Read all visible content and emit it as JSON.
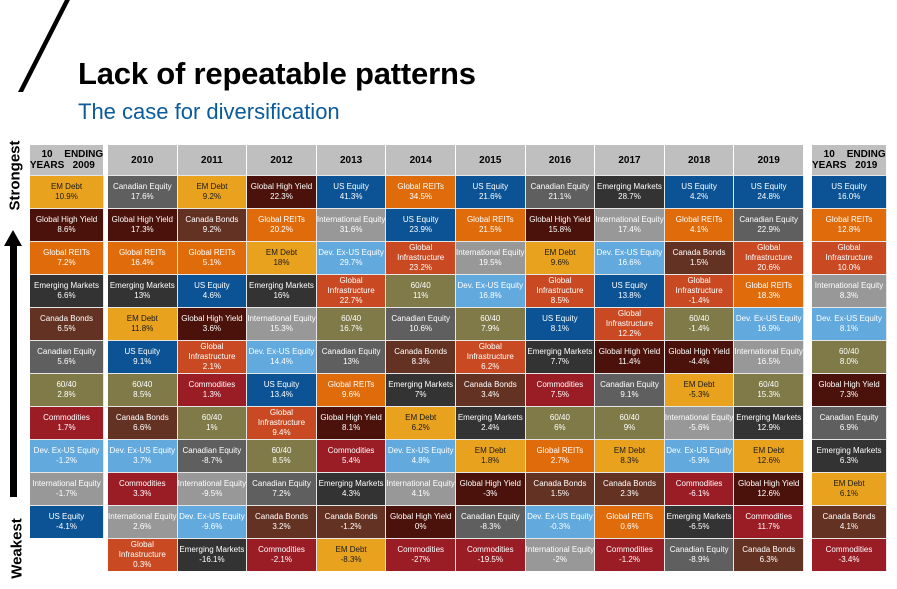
{
  "header": {
    "title": "Lack of repeatable patterns",
    "subtitle": "The case for diversification"
  },
  "axis": {
    "top_label": "Strongest",
    "bottom_label": "Weakest"
  },
  "asset_colors": {
    "EM Debt": "#e8a21e",
    "Global High Yield": "#4a120a",
    "Global REITs": "#e06b0b",
    "Emerging Markets": "#333333",
    "Canada Bonds": "#643222",
    "Canadian Equity": "#5f5f5f",
    "60/40": "#7f7a48",
    "Commodities": "#9a1c25",
    "Dev. Ex-US Equity": "#62a9de",
    "International Equity": "#989898",
    "US Equity": "#0b5394",
    "Global Infrastructure": "#c94a22"
  },
  "chart_data": {
    "type": "table",
    "title": "Lack of repeatable patterns",
    "subtitle": "The case for diversification",
    "ranking": "Strongest (top) to Weakest (bottom)",
    "columns": [
      {
        "header": [
          "10 YEARS",
          "ENDING 2009"
        ],
        "cells": [
          {
            "asset": "EM Debt",
            "value": "10.9%"
          },
          {
            "asset": "Global High Yield",
            "value": "8.6%"
          },
          {
            "asset": "Global REITs",
            "value": "7.2%"
          },
          {
            "asset": "Emerging Markets",
            "value": "6.6%"
          },
          {
            "asset": "Canada Bonds",
            "value": "6.5%"
          },
          {
            "asset": "Canadian Equity",
            "value": "5.6%"
          },
          {
            "asset": "60/40",
            "value": "2.8%"
          },
          {
            "asset": "Commodities",
            "value": "1.7%"
          },
          {
            "asset": "Dev. Ex-US Equity",
            "value": "-1.2%"
          },
          {
            "asset": "International Equity",
            "value": "-1.7%"
          },
          {
            "asset": "US Equity",
            "value": "-4.1%"
          }
        ]
      },
      {
        "header": [
          "2010"
        ],
        "cells": [
          {
            "asset": "Canadian Equity",
            "value": "17.6%"
          },
          {
            "asset": "Global High Yield",
            "value": "17.3%"
          },
          {
            "asset": "Global REITs",
            "value": "16.4%"
          },
          {
            "asset": "Emerging Markets",
            "value": "13%"
          },
          {
            "asset": "EM Debt",
            "value": "11.8%"
          },
          {
            "asset": "US Equity",
            "value": "9.1%"
          },
          {
            "asset": "60/40",
            "value": "8.5%"
          },
          {
            "asset": "Canada Bonds",
            "value": "6.6%"
          },
          {
            "asset": "Dev. Ex-US Equity",
            "value": "3.7%"
          },
          {
            "asset": "Commodities",
            "value": "3.3%"
          },
          {
            "asset": "International Equity",
            "value": "2.6%"
          },
          {
            "asset": "Global Infrastructure",
            "value": "0.3%"
          }
        ]
      },
      {
        "header": [
          "2011"
        ],
        "cells": [
          {
            "asset": "EM Debt",
            "value": "9.2%"
          },
          {
            "asset": "Canada Bonds",
            "value": "9.2%"
          },
          {
            "asset": "Global REITs",
            "value": "5.1%"
          },
          {
            "asset": "US Equity",
            "value": "4.6%"
          },
          {
            "asset": "Global High Yield",
            "value": "3.6%"
          },
          {
            "asset": "Global Infrastructure",
            "value": "2.1%"
          },
          {
            "asset": "Commodities",
            "value": "1.3%"
          },
          {
            "asset": "60/40",
            "value": "1%"
          },
          {
            "asset": "Canadian Equity",
            "value": "-8.7%"
          },
          {
            "asset": "International Equity",
            "value": "-9.5%"
          },
          {
            "asset": "Dev. Ex-US Equity",
            "value": "-9.6%"
          },
          {
            "asset": "Emerging Markets",
            "value": "-16.1%"
          }
        ]
      },
      {
        "header": [
          "2012"
        ],
        "cells": [
          {
            "asset": "Global High Yield",
            "value": "22.3%"
          },
          {
            "asset": "Global REITs",
            "value": "20.2%"
          },
          {
            "asset": "EM Debt",
            "value": "18%"
          },
          {
            "asset": "Emerging Markets",
            "value": "16%"
          },
          {
            "asset": "International Equity",
            "value": "15.3%"
          },
          {
            "asset": "Dev. Ex-US Equity",
            "value": "14.4%"
          },
          {
            "asset": "US Equity",
            "value": "13.4%"
          },
          {
            "asset": "Global Infrastructure",
            "value": "9.4%"
          },
          {
            "asset": "60/40",
            "value": "8.5%"
          },
          {
            "asset": "Canadian Equity",
            "value": "7.2%"
          },
          {
            "asset": "Canada Bonds",
            "value": "3.2%"
          },
          {
            "asset": "Commodities",
            "value": "-2.1%"
          }
        ]
      },
      {
        "header": [
          "2013"
        ],
        "cells": [
          {
            "asset": "US Equity",
            "value": "41.3%"
          },
          {
            "asset": "International Equity",
            "value": "31.6%"
          },
          {
            "asset": "Dev. Ex-US Equity",
            "value": "29.7%"
          },
          {
            "asset": "Global Infrastructure",
            "value": "22.7%"
          },
          {
            "asset": "60/40",
            "value": "16.7%"
          },
          {
            "asset": "Canadian Equity",
            "value": "13%"
          },
          {
            "asset": "Global REITs",
            "value": "9.6%"
          },
          {
            "asset": "Global High Yield",
            "value": "8.1%"
          },
          {
            "asset": "Commodities",
            "value": "5.4%"
          },
          {
            "asset": "Emerging Markets",
            "value": "4.3%"
          },
          {
            "asset": "Canada Bonds",
            "value": "-1.2%"
          },
          {
            "asset": "EM Debt",
            "value": "-8.3%"
          }
        ]
      },
      {
        "header": [
          "2014"
        ],
        "cells": [
          {
            "asset": "Global REITs",
            "value": "34.5%"
          },
          {
            "asset": "US Equity",
            "value": "23.9%"
          },
          {
            "asset": "Global Infrastructure",
            "value": "23.2%"
          },
          {
            "asset": "60/40",
            "value": "11%"
          },
          {
            "asset": "Canadian Equity",
            "value": "10.6%"
          },
          {
            "asset": "Canada Bonds",
            "value": "8.3%"
          },
          {
            "asset": "Emerging Markets",
            "value": "7%"
          },
          {
            "asset": "EM Debt",
            "value": "6.2%"
          },
          {
            "asset": "Dev. Ex-US Equity",
            "value": "4.8%"
          },
          {
            "asset": "International Equity",
            "value": "4.1%"
          },
          {
            "asset": "Global High Yield",
            "value": "0%"
          },
          {
            "asset": "Commodities",
            "value": "-27%"
          }
        ]
      },
      {
        "header": [
          "2015"
        ],
        "cells": [
          {
            "asset": "US Equity",
            "value": "21.6%"
          },
          {
            "asset": "Global REITs",
            "value": "21.5%"
          },
          {
            "asset": "International Equity",
            "value": "19.5%"
          },
          {
            "asset": "Dev. Ex-US Equity",
            "value": "16.8%"
          },
          {
            "asset": "60/40",
            "value": "7.9%"
          },
          {
            "asset": "Global Infrastructure",
            "value": "6.2%"
          },
          {
            "asset": "Canada Bonds",
            "value": "3.4%"
          },
          {
            "asset": "Emerging Markets",
            "value": "2.4%"
          },
          {
            "asset": "EM Debt",
            "value": "1.8%"
          },
          {
            "asset": "Global High Yield",
            "value": "-3%"
          },
          {
            "asset": "Canadian Equity",
            "value": "-8.3%"
          },
          {
            "asset": "Commodities",
            "value": "-19.5%"
          }
        ]
      },
      {
        "header": [
          "2016"
        ],
        "cells": [
          {
            "asset": "Canadian Equity",
            "value": "21.1%"
          },
          {
            "asset": "Global High Yield",
            "value": "15.8%"
          },
          {
            "asset": "EM Debt",
            "value": "9.6%"
          },
          {
            "asset": "Global Infrastructure",
            "value": "8.5%"
          },
          {
            "asset": "US Equity",
            "value": "8.1%"
          },
          {
            "asset": "Emerging Markets",
            "value": "7.7%"
          },
          {
            "asset": "Commodities",
            "value": "7.5%"
          },
          {
            "asset": "60/40",
            "value": "6%"
          },
          {
            "asset": "Global REITs",
            "value": "2.7%"
          },
          {
            "asset": "Canada Bonds",
            "value": "1.5%"
          },
          {
            "asset": "Dev. Ex-US Equity",
            "value": "-0.3%"
          },
          {
            "asset": "International Equity",
            "value": "-2%"
          }
        ]
      },
      {
        "header": [
          "2017"
        ],
        "cells": [
          {
            "asset": "Emerging Markets",
            "value": "28.7%"
          },
          {
            "asset": "International Equity",
            "value": "17.4%"
          },
          {
            "asset": "Dev. Ex-US Equity",
            "value": "16.6%"
          },
          {
            "asset": "US Equity",
            "value": "13.8%"
          },
          {
            "asset": "Global Infrastructure",
            "value": "12.2%"
          },
          {
            "asset": "Global High Yield",
            "value": "11.4%"
          },
          {
            "asset": "Canadian Equity",
            "value": "9.1%"
          },
          {
            "asset": "60/40",
            "value": "9%"
          },
          {
            "asset": "EM Debt",
            "value": "8.3%"
          },
          {
            "asset": "Canada Bonds",
            "value": "2.3%"
          },
          {
            "asset": "Global REITs",
            "value": "0.6%"
          },
          {
            "asset": "Commodities",
            "value": "-1.2%"
          }
        ]
      },
      {
        "header": [
          "2018"
        ],
        "cells": [
          {
            "asset": "US Equity",
            "value": "4.2%"
          },
          {
            "asset": "Global REITs",
            "value": "4.1%"
          },
          {
            "asset": "Canada Bonds",
            "value": "1.5%"
          },
          {
            "asset": "Global Infrastructure",
            "value": "-1.4%"
          },
          {
            "asset": "60/40",
            "value": "-1.4%"
          },
          {
            "asset": "Global High Yield",
            "value": "-4.4%"
          },
          {
            "asset": "EM Debt",
            "value": "-5.3%"
          },
          {
            "asset": "International Equity",
            "value": "-5.6%"
          },
          {
            "asset": "Dev. Ex-US Equity",
            "value": "-5.9%"
          },
          {
            "asset": "Commodities",
            "value": "-6.1%"
          },
          {
            "asset": "Emerging Markets",
            "value": "-6.5%"
          },
          {
            "asset": "Canadian Equity",
            "value": "-8.9%"
          }
        ]
      },
      {
        "header": [
          "2019"
        ],
        "cells": [
          {
            "asset": "US Equity",
            "value": "24.8%"
          },
          {
            "asset": "Canadian Equity",
            "value": "22.9%"
          },
          {
            "asset": "Global Infrastructure",
            "value": "20.6%"
          },
          {
            "asset": "Global REITs",
            "value": "18.3%"
          },
          {
            "asset": "Dev. Ex-US Equity",
            "value": "16.9%"
          },
          {
            "asset": "International Equity",
            "value": "16.5%"
          },
          {
            "asset": "60/40",
            "value": "15.3%"
          },
          {
            "asset": "Emerging Markets",
            "value": "12.9%"
          },
          {
            "asset": "EM Debt",
            "value": "12.6%"
          },
          {
            "asset": "Global High Yield",
            "value": "12.6%"
          },
          {
            "asset": "Commodities",
            "value": "11.7%"
          },
          {
            "asset": "Canada Bonds",
            "value": "6.3%"
          }
        ]
      },
      {
        "header": [
          "10 YEARS",
          "ENDING 2019"
        ],
        "cells": [
          {
            "asset": "US Equity",
            "value": "16.0%"
          },
          {
            "asset": "Global REITs",
            "value": "12.8%"
          },
          {
            "asset": "Global Infrastructure",
            "value": "10.0%"
          },
          {
            "asset": "International Equity",
            "value": "8.3%"
          },
          {
            "asset": "Dev. Ex-US Equity",
            "value": "8.1%"
          },
          {
            "asset": "60/40",
            "value": "8.0%"
          },
          {
            "asset": "Global High Yield",
            "value": "7.3%"
          },
          {
            "asset": "Canadian Equity",
            "value": "6.9%"
          },
          {
            "asset": "Emerging Markets",
            "value": "6.3%"
          },
          {
            "asset": "EM Debt",
            "value": "6.1%"
          },
          {
            "asset": "Canada Bonds",
            "value": "4.1%"
          },
          {
            "asset": "Commodities",
            "value": "-3.4%"
          }
        ]
      }
    ]
  }
}
